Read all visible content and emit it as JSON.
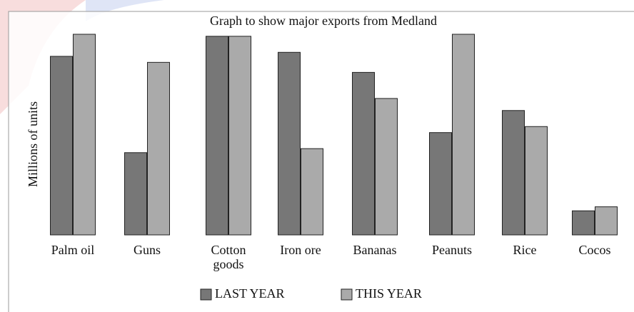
{
  "chart_data": {
    "type": "bar",
    "title": "Graph to show major exports from Medland",
    "y_label": "Millions of units",
    "categories": [
      "Palm oil",
      "Guns",
      "Cotton goods",
      "Iron ore",
      "Bananas",
      "Peanuts",
      "Rice",
      "Cocos"
    ],
    "series": [
      {
        "name": "LAST YEAR",
        "color": "#777777",
        "values": [
          89,
          41,
          99,
          91,
          81,
          51,
          62,
          12
        ]
      },
      {
        "name": "THIS YEAR",
        "color": "#aaaaaa",
        "values": [
          100,
          86,
          99,
          43,
          68,
          100,
          54,
          14
        ]
      }
    ],
    "ylim": [
      0,
      100
    ]
  }
}
